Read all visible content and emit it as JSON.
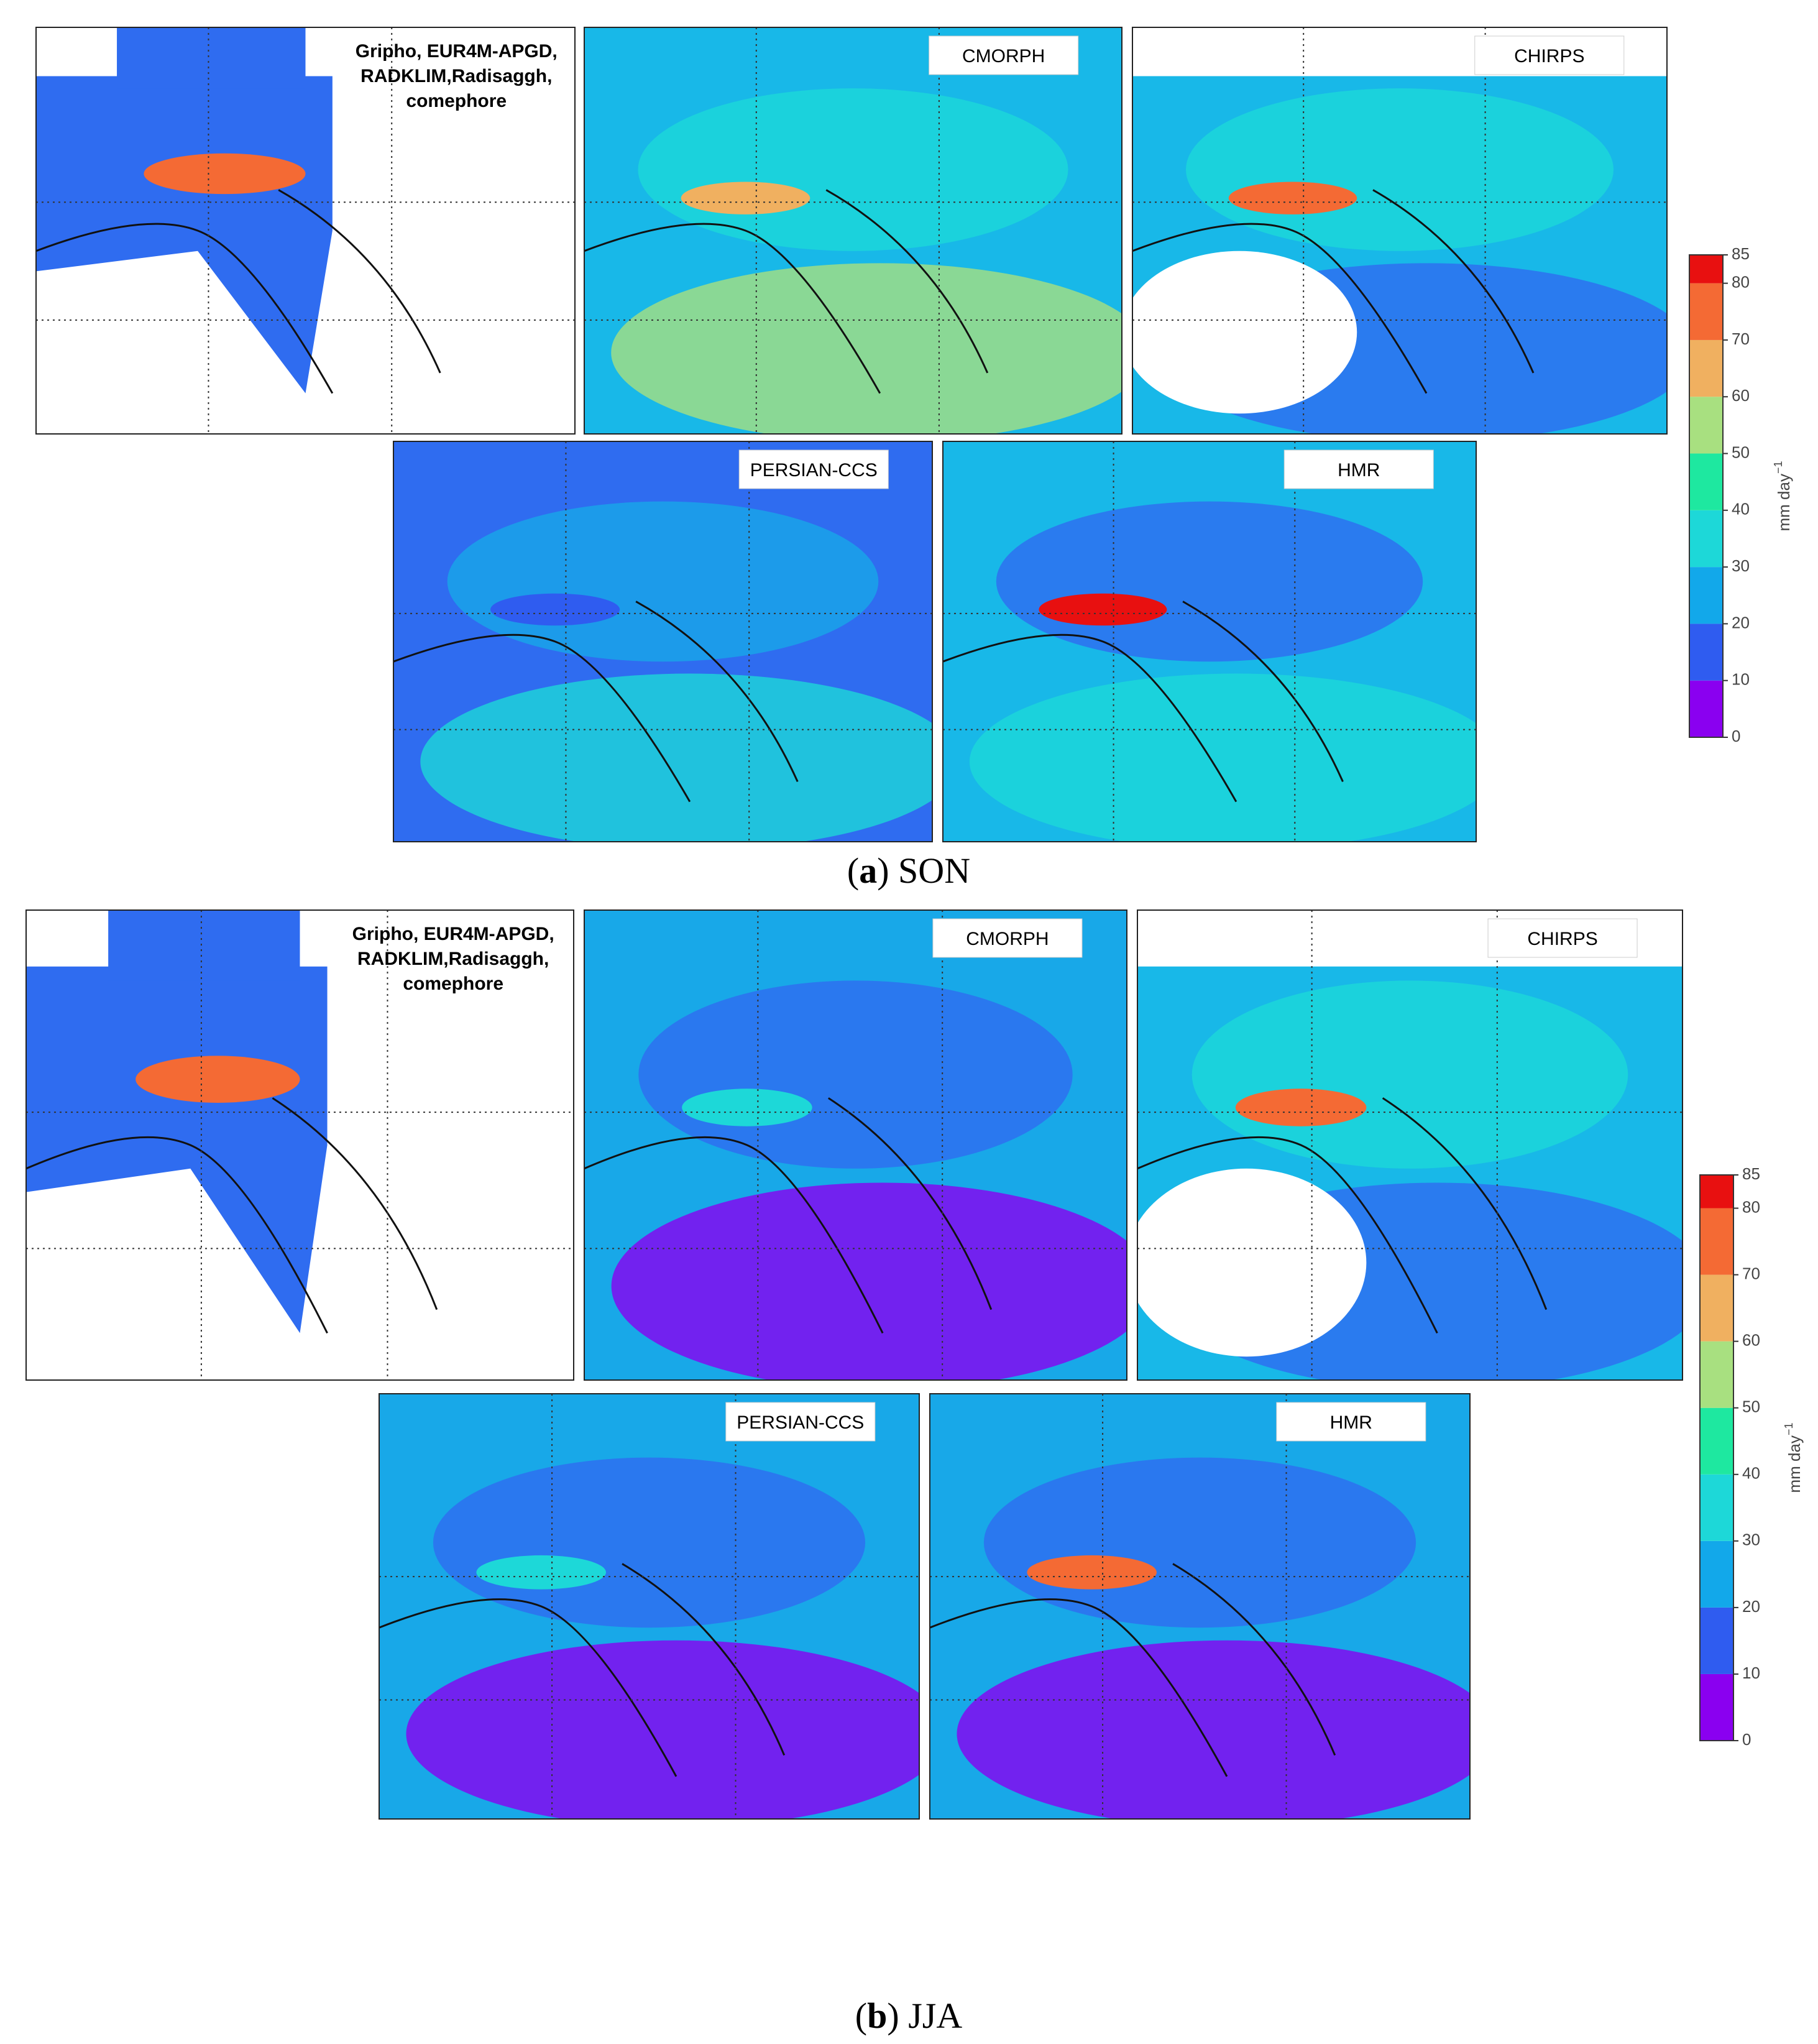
{
  "figures": [
    {
      "caption": [
        "(",
        "a",
        ") SON"
      ],
      "panels": [
        {
          "label_lines": [
            "Gripho, EUR4M-APGD,",
            "RADKLIM,Radisaggh,",
            "comephore"
          ]
        },
        {
          "label": "CMORPH"
        },
        {
          "label": "CHIRPS"
        },
        {
          "label": "PERSIAN-CCS"
        },
        {
          "label": "HMR"
        }
      ],
      "colorbar": {
        "levels": [
          0,
          10,
          20,
          30,
          40,
          50,
          60,
          70,
          80,
          85
        ],
        "colors": [
          "#8a00f0",
          "#2f5cf0",
          "#12a8ea",
          "#1dd8d8",
          "#1ee8a0",
          "#a8e080",
          "#f0b060",
          "#f46a34",
          "#e81010"
        ],
        "unit": "mm day",
        "unit_exponent": "−1"
      }
    },
    {
      "caption": [
        "(",
        "b",
        ") JJA"
      ],
      "panels": [
        {
          "label_lines": [
            "Gripho, EUR4M-APGD,",
            "RADKLIM,Radisaggh,",
            "comephore"
          ]
        },
        {
          "label": "CMORPH"
        },
        {
          "label": "CHIRPS"
        },
        {
          "label": "PERSIAN-CCS"
        },
        {
          "label": "HMR"
        }
      ],
      "colorbar": {
        "levels": [
          0,
          10,
          20,
          30,
          40,
          50,
          60,
          70,
          80,
          85
        ],
        "colors": [
          "#8a00f0",
          "#2f5cf0",
          "#12a8ea",
          "#1dd8d8",
          "#1ee8a0",
          "#a8e080",
          "#f0b060",
          "#f46a34",
          "#e81010"
        ],
        "unit": "mm day",
        "unit_exponent": "−1"
      }
    }
  ]
}
